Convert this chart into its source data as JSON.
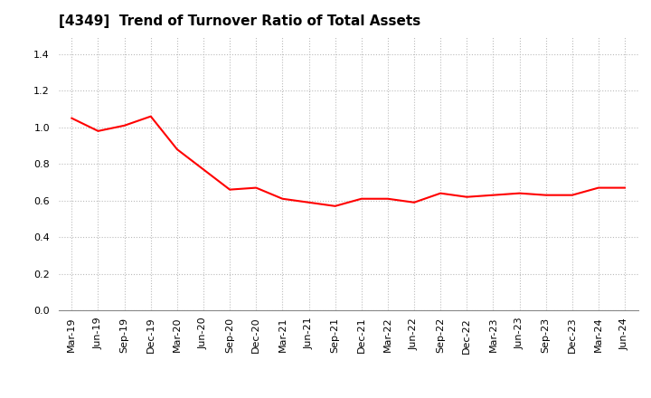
{
  "title": "[4349]  Trend of Turnover Ratio of Total Assets",
  "x_labels": [
    "Mar-19",
    "Jun-19",
    "Sep-19",
    "Dec-19",
    "Mar-20",
    "Jun-20",
    "Sep-20",
    "Dec-20",
    "Mar-21",
    "Jun-21",
    "Sep-21",
    "Dec-21",
    "Mar-22",
    "Jun-22",
    "Sep-22",
    "Dec-22",
    "Mar-23",
    "Jun-23",
    "Sep-23",
    "Dec-23",
    "Mar-24",
    "Jun-24"
  ],
  "y_values": [
    1.05,
    0.98,
    1.01,
    1.06,
    0.88,
    0.77,
    0.66,
    0.67,
    0.61,
    0.59,
    0.57,
    0.61,
    0.61,
    0.59,
    0.64,
    0.62,
    0.63,
    0.64,
    0.63,
    0.63,
    0.67,
    0.67
  ],
  "line_color": "#FF0000",
  "line_width": 1.5,
  "ylim": [
    0.0,
    1.5
  ],
  "yticks": [
    0.0,
    0.2,
    0.4,
    0.6,
    0.8,
    1.0,
    1.2,
    1.4
  ],
  "grid_color": "#bbbbbb",
  "title_fontsize": 11,
  "tick_fontsize": 8,
  "bg_color": "#ffffff",
  "plot_bg_color": "#ffffff"
}
